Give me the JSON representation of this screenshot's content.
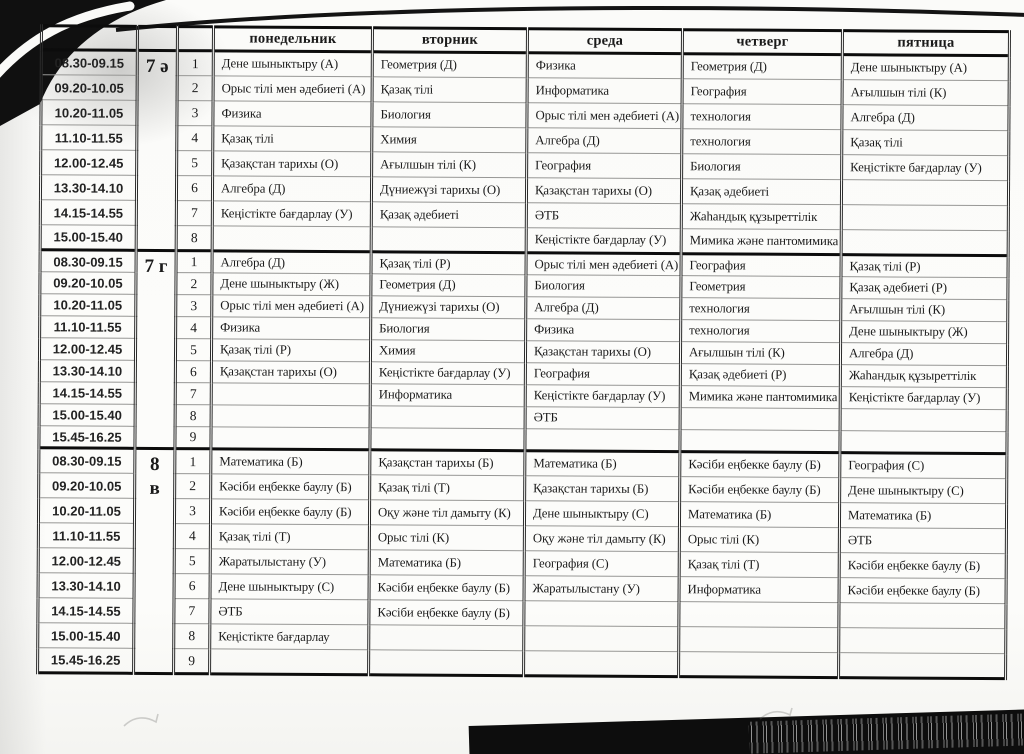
{
  "colors": {
    "ink": "#1a1a1a",
    "paper": "#fbfbf9"
  },
  "header": {
    "day_columns": [
      "понедельник",
      "вторник",
      "среда",
      "четверг",
      "пятница"
    ]
  },
  "sections": [
    {
      "class_label": "7 ә",
      "rows": [
        {
          "time": "08.30-09.15",
          "num": "1",
          "subjects": [
            "Дене шыныктыру (А)",
            "Геометрия (Д)",
            "Физика",
            "Геометрия (Д)",
            "Дене шыныктыру (А)"
          ]
        },
        {
          "time": "09.20-10.05",
          "num": "2",
          "subjects": [
            "Орыс тілі мен әдебиеті (А)",
            "Қазақ тілі",
            "Информатика",
            "География",
            "Ағылшын тілі (К)"
          ]
        },
        {
          "time": "10.20-11.05",
          "num": "3",
          "subjects": [
            "Физика",
            "Биология",
            "Орыс тілі мен әдебиеті (А)",
            "технология",
            "Алгебра (Д)"
          ]
        },
        {
          "time": "11.10-11.55",
          "num": "4",
          "subjects": [
            "Қазақ тілі",
            "Химия",
            "Алгебра (Д)",
            "технология",
            "Қазақ тілі"
          ]
        },
        {
          "time": "12.00-12.45",
          "num": "5",
          "subjects": [
            "Қазақстан тарихы (О)",
            "Ағылшын тілі (К)",
            "География",
            "Биология",
            "Кеңістікте бағдарлау (У)"
          ]
        },
        {
          "time": "13.30-14.10",
          "num": "6",
          "subjects": [
            "Алгебра (Д)",
            "Дүниежүзі тарихы (О)",
            "Қазақстан тарихы (О)",
            "Қазақ әдебиеті",
            ""
          ]
        },
        {
          "time": "14.15-14.55",
          "num": "7",
          "subjects": [
            "Кеңістікте бағдарлау (У)",
            "Қазақ әдебиеті",
            "ӘТБ",
            "Жаһандық құзыреттілік",
            ""
          ]
        },
        {
          "time": "15.00-15.40",
          "num": "8",
          "subjects": [
            "",
            "",
            "Кеңістікте бағдарлау (У)",
            "Мимика және пантомимика",
            ""
          ]
        }
      ]
    },
    {
      "class_label": "7 г",
      "rows": [
        {
          "time": "08.30-09.15",
          "num": "1",
          "subjects": [
            "Алгебра (Д)",
            "Қазақ тілі (Р)",
            "Орыс тілі мен әдебиеті (А)",
            "География",
            "Қазақ тілі (Р)"
          ]
        },
        {
          "time": "09.20-10.05",
          "num": "2",
          "subjects": [
            "Дене шыныктыру (Ж)",
            "Геометрия (Д)",
            "Биология",
            "Геометрия",
            "Қазақ әдебиеті (Р)"
          ]
        },
        {
          "time": "10.20-11.05",
          "num": "3",
          "subjects": [
            "Орыс тілі мен әдебиеті (А)",
            "Дүниежүзі тарихы (О)",
            "Алгебра (Д)",
            "технология",
            "Ағылшын тілі (К)"
          ]
        },
        {
          "time": "11.10-11.55",
          "num": "4",
          "subjects": [
            "Физика",
            "Биология",
            "Физика",
            "технология",
            "Дене шыныктыру (Ж)"
          ]
        },
        {
          "time": "12.00-12.45",
          "num": "5",
          "subjects": [
            "Қазақ тілі (Р)",
            "Химия",
            "Қазақстан тарихы (О)",
            "Ағылшын тілі (К)",
            "Алгебра (Д)"
          ]
        },
        {
          "time": "13.30-14.10",
          "num": "6",
          "subjects": [
            "Қазақстан тарихы (О)",
            "Кеңістікте бағдарлау (У)",
            "География",
            "Қазақ әдебиеті (Р)",
            "Жаһандық құзыреттілік"
          ]
        },
        {
          "time": "14.15-14.55",
          "num": "7",
          "subjects": [
            "",
            "Информатика",
            "Кеңістікте бағдарлау (У)",
            "Мимика және пантомимика",
            "Кеңістікте бағдарлау (У)"
          ]
        },
        {
          "time": "15.00-15.40",
          "num": "8",
          "subjects": [
            "",
            "",
            "ӘТБ",
            "",
            ""
          ]
        },
        {
          "time": "15.45-16.25",
          "num": "9",
          "subjects": [
            "",
            "",
            "",
            "",
            ""
          ]
        }
      ]
    },
    {
      "class_label": "8\nв",
      "rows": [
        {
          "time": "08.30-09.15",
          "num": "1",
          "subjects": [
            "Математика (Б)",
            "Қазақстан тарихы (Б)",
            "Математика (Б)",
            "Кәсіби еңбекке баулу (Б)",
            "География (С)"
          ]
        },
        {
          "time": "09.20-10.05",
          "num": "2",
          "subjects": [
            "Кәсіби еңбекке баулу (Б)",
            "Қазақ тілі (Т)",
            "Қазақстан тарихы (Б)",
            "Кәсіби еңбекке баулу (Б)",
            "Дене шыныктыру (С)"
          ]
        },
        {
          "time": "10.20-11.05",
          "num": "3",
          "subjects": [
            "Кәсіби еңбекке баулу (Б)",
            "Оқу және тіл дамыту (К)",
            "Дене шыныктыру (С)",
            "Математика (Б)",
            "Математика (Б)"
          ]
        },
        {
          "time": "11.10-11.55",
          "num": "4",
          "subjects": [
            "Қазақ тілі (Т)",
            "Орыс тілі (К)",
            "Оқу және тіл дамыту (К)",
            "Орыс тілі (К)",
            "ӘТБ"
          ]
        },
        {
          "time": "12.00-12.45",
          "num": "5",
          "subjects": [
            "Жаратылыстану (У)",
            "Математика (Б)",
            "География (С)",
            "Қазақ тілі (Т)",
            "Кәсіби еңбекке баулу (Б)"
          ]
        },
        {
          "time": "13.30-14.10",
          "num": "6",
          "subjects": [
            "Дене шыныктыру (С)",
            "Кәсіби еңбекке баулу (Б)",
            "Жаратылыстану (У)",
            "Информатика",
            "Кәсіби еңбекке баулу (Б)"
          ]
        },
        {
          "time": "14.15-14.55",
          "num": "7",
          "subjects": [
            "ӘТБ",
            "Кәсіби еңбекке баулу (Б)",
            "",
            "",
            ""
          ]
        },
        {
          "time": "15.00-15.40",
          "num": "8",
          "subjects": [
            "Кеңістікте бағдарлау",
            "",
            "",
            "",
            ""
          ]
        },
        {
          "time": "15.45-16.25",
          "num": "9",
          "subjects": [
            "",
            "",
            "",
            "",
            ""
          ]
        }
      ]
    }
  ]
}
